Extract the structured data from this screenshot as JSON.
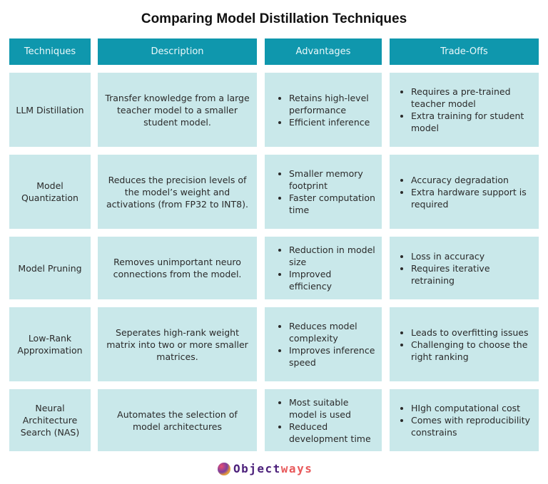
{
  "title": "Comparing Model Distillation Techniques",
  "headers": [
    "Techniques",
    "Description",
    "Advantages",
    "Trade-Offs"
  ],
  "rows": [
    {
      "technique": "LLM Distillation",
      "description": "Transfer knowledge from a large teacher model to a smaller student model.",
      "advantages": [
        "Retains high-level performance",
        "Efficient inference"
      ],
      "tradeoffs": [
        "Requires a pre-trained teacher model",
        "Extra training for student model"
      ]
    },
    {
      "technique": "Model Quantization",
      "description": "Reduces the precision levels of the model’s weight and activations (from FP32 to INT8).",
      "advantages": [
        "Smaller memory footprint",
        "Faster computation time"
      ],
      "tradeoffs": [
        "Accuracy degradation",
        "Extra hardware support is required"
      ]
    },
    {
      "technique": "Model Pruning",
      "description": "Removes unimportant neuro connections from the model.",
      "advantages": [
        "Reduction in model size",
        "Improved efficiency"
      ],
      "tradeoffs": [
        "Loss in accuracy",
        "Requires iterative retraining"
      ]
    },
    {
      "technique": "Low-Rank Approximation",
      "description": "Seperates high-rank weight matrix into two or more smaller matrices.",
      "advantages": [
        "Reduces model complexity",
        "Improves inference speed"
      ],
      "tradeoffs": [
        "Leads to overfitting issues",
        "Challenging to choose the right ranking"
      ]
    },
    {
      "technique": "Neural Architecture Search (NAS)",
      "description": "Automates the selection of model architectures",
      "advantages": [
        "Most suitable model is used",
        "Reduced development time"
      ],
      "tradeoffs": [
        "HIgh computational cost",
        "Comes with reproducibility constrains"
      ]
    }
  ],
  "logo": {
    "part1": "Object",
    "part2": "ways"
  },
  "colors": {
    "header": "#0f97ad",
    "cell": "#c9e8ea"
  }
}
